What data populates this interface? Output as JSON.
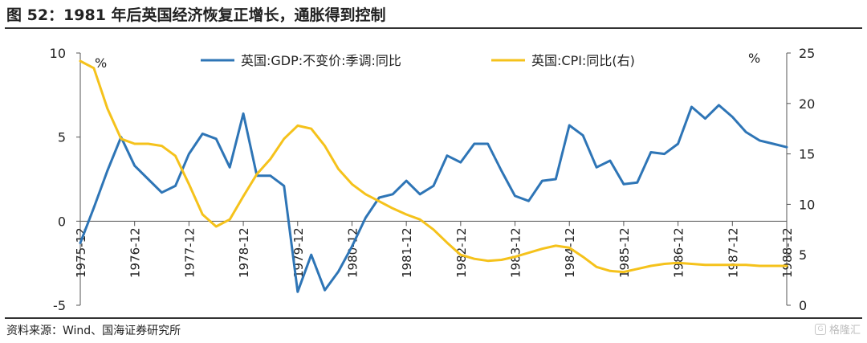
{
  "header": {
    "title": "图 52：1981 年后英国经济恢复正增长，通胀得到控制"
  },
  "footer": {
    "source": "资料来源：Wind、国海证券研究所",
    "watermark": "格隆汇"
  },
  "chart_data": {
    "type": "line",
    "left_unit": "%",
    "right_unit": "%",
    "y_left": {
      "min": -5,
      "max": 10,
      "ticks": [
        -5,
        0,
        5,
        10
      ]
    },
    "y_right": {
      "min": 0,
      "max": 25,
      "ticks": [
        0,
        5,
        10,
        15,
        20,
        25
      ]
    },
    "x_range": [
      1975.75,
      1988.75
    ],
    "x_ticks": [
      "1975-12",
      "1976-12",
      "1977-12",
      "1978-12",
      "1979-12",
      "1980-12",
      "1981-12",
      "1982-12",
      "1983-12",
      "1984-12",
      "1985-12",
      "1986-12",
      "1987-12",
      "1988-12"
    ],
    "series": [
      {
        "name": "英国:GDP:不变价:季调:同比",
        "axis": "left",
        "color": "#2e75b6",
        "x": [
          1975.75,
          1976.0,
          1976.25,
          1976.5,
          1976.75,
          1977.0,
          1977.25,
          1977.5,
          1977.75,
          1978.0,
          1978.25,
          1978.5,
          1978.75,
          1979.0,
          1979.25,
          1979.5,
          1979.75,
          1980.0,
          1980.25,
          1980.5,
          1980.75,
          1981.0,
          1981.25,
          1981.5,
          1981.75,
          1982.0,
          1982.25,
          1982.5,
          1982.75,
          1983.0,
          1983.25,
          1983.5,
          1983.75,
          1984.0,
          1984.25,
          1984.5,
          1984.75,
          1985.0,
          1985.25,
          1985.5,
          1985.75,
          1986.0,
          1986.25,
          1986.5,
          1986.75,
          1987.0,
          1987.25,
          1987.5,
          1987.75,
          1988.0,
          1988.25,
          1988.5,
          1988.75
        ],
        "values": [
          -1.3,
          0.8,
          3.0,
          5.0,
          3.3,
          2.5,
          1.7,
          2.1,
          4.0,
          5.2,
          4.9,
          3.2,
          6.4,
          2.7,
          2.7,
          2.1,
          -4.2,
          -2.0,
          -4.1,
          -3.0,
          -1.5,
          0.2,
          1.4,
          1.6,
          2.4,
          1.6,
          2.1,
          3.9,
          3.5,
          4.6,
          4.6,
          3.0,
          1.5,
          1.2,
          2.4,
          2.5,
          5.7,
          5.1,
          3.2,
          3.6,
          2.2,
          2.3,
          4.1,
          4.0,
          4.6,
          6.8,
          6.1,
          6.9,
          6.2,
          5.3,
          4.8,
          4.6,
          4.4
        ]
      },
      {
        "name": "英国:CPI:同比(右)",
        "axis": "right",
        "color": "#f5c21b",
        "x": [
          1975.75,
          1976.0,
          1976.25,
          1976.5,
          1976.75,
          1977.0,
          1977.25,
          1977.5,
          1977.75,
          1978.0,
          1978.25,
          1978.5,
          1978.75,
          1979.0,
          1979.25,
          1979.5,
          1979.75,
          1980.0,
          1980.25,
          1980.5,
          1980.75,
          1981.0,
          1981.25,
          1981.5,
          1981.75,
          1982.0,
          1982.25,
          1982.5,
          1982.75,
          1983.0,
          1983.25,
          1983.5,
          1983.75,
          1984.0,
          1984.25,
          1984.5,
          1984.75,
          1985.0,
          1985.25,
          1985.5,
          1985.75,
          1986.0,
          1986.25,
          1986.5,
          1986.75,
          1987.0,
          1987.25,
          1987.5,
          1987.75,
          1988.0,
          1988.25,
          1988.5,
          1988.75
        ],
        "values": [
          24.2,
          23.5,
          19.5,
          16.5,
          16.0,
          16.0,
          15.8,
          14.8,
          12.0,
          9.0,
          7.8,
          8.5,
          10.8,
          13.0,
          14.5,
          16.5,
          17.8,
          17.5,
          15.8,
          13.5,
          12.0,
          11.0,
          10.3,
          9.6,
          9.0,
          8.5,
          7.5,
          6.2,
          5.0,
          4.6,
          4.4,
          4.5,
          4.8,
          5.2,
          5.6,
          5.9,
          5.7,
          4.8,
          3.8,
          3.4,
          3.3,
          3.6,
          3.9,
          4.1,
          4.2,
          4.1,
          4.0,
          4.0,
          4.0,
          4.0,
          3.9,
          3.9,
          3.9
        ]
      }
    ]
  }
}
